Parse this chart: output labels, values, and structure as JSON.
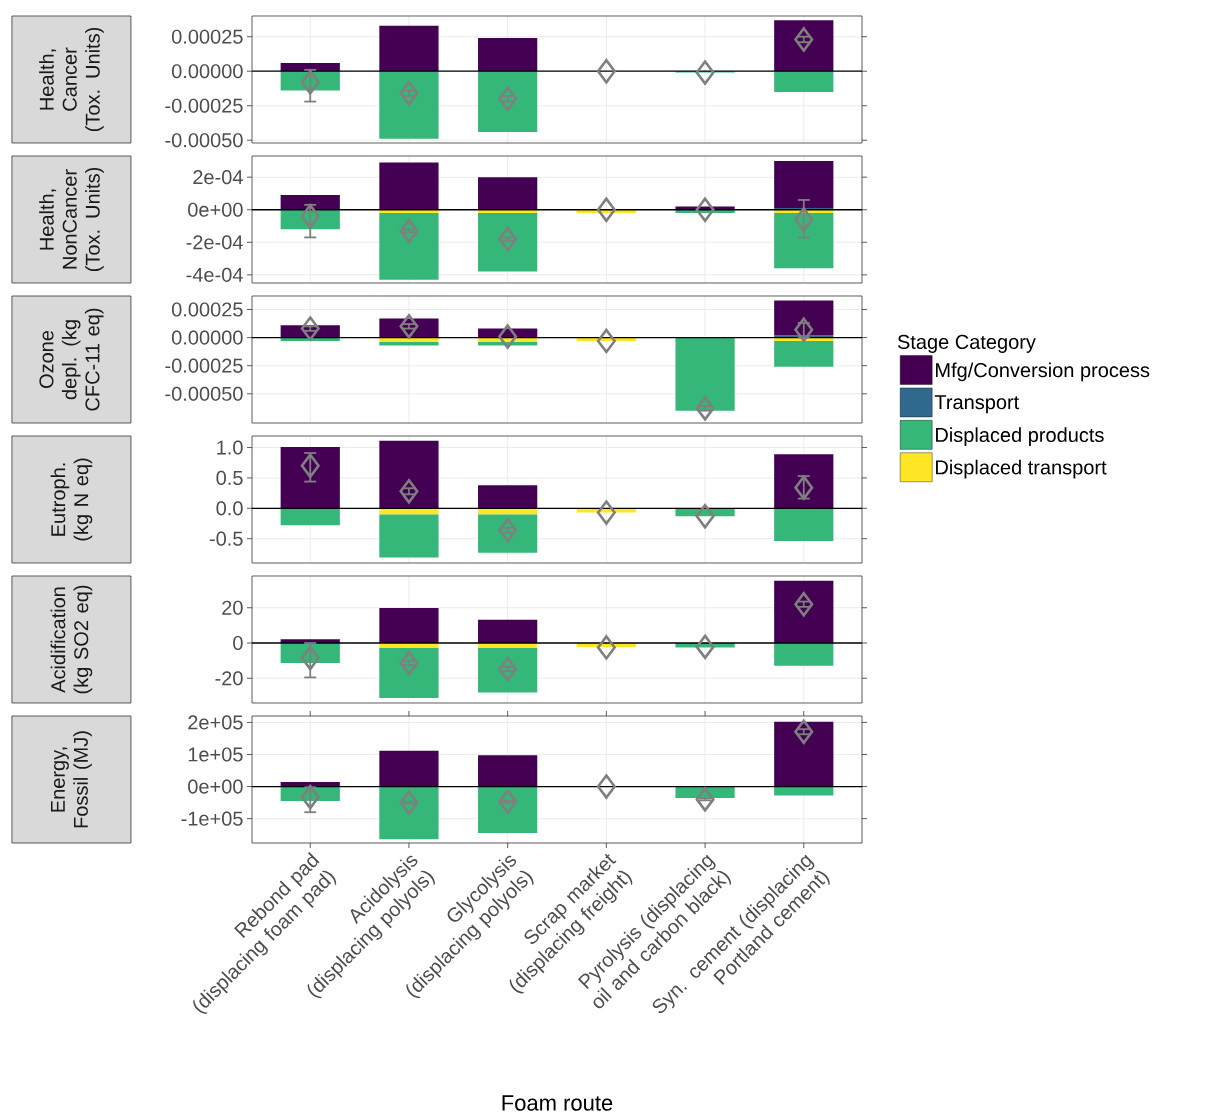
{
  "chart_data": [
    {
      "type": "bar",
      "stacked": true,
      "ylabel": "Health, Cancer (Tox. Units)",
      "ylim": [
        -0.00052,
        0.0004
      ],
      "yticks": [
        {
          "value": -0.0005,
          "label": "-0.00050"
        },
        {
          "value": -0.00025,
          "label": "-0.00025"
        },
        {
          "value": 0,
          "label": "0.00000"
        },
        {
          "value": 0.00025,
          "label": "0.00025"
        }
      ],
      "grid": true,
      "tick_labels": "y",
      "ref_lines": [
        {
          "axis": "y",
          "value": 0,
          "color": "#000000"
        }
      ],
      "series": [
        {
          "color": "#35b779",
          "values": [
            -0.00014,
            -0.00049,
            -0.00044,
            null,
            -1e-05,
            -0.00015
          ]
        },
        {
          "color": "#440154",
          "values": [
            6e-05,
            0.00033,
            0.00024,
            null,
            null,
            0.00037
          ]
        },
        {
          "type": "scatter",
          "color": "#7f7f7f",
          "marker": "diamond",
          "values": [
            -8e-05,
            -0.00016,
            -0.0002,
            0,
            -1e-05,
            0.00023
          ],
          "errors": [
            [
              -0.00022,
              1e-05
            ],
            [
              -0.00018,
              -0.00014
            ],
            [
              -0.00022,
              -0.00018
            ],
            null,
            null,
            [
              0.00021,
              0.00025
            ]
          ]
        }
      ]
    },
    {
      "type": "bar",
      "stacked": true,
      "ylabel": "Health, NonCancer (Tox. Units)",
      "ylim": [
        -0.00045,
        0.00033
      ],
      "yticks": [
        {
          "value": -0.0004,
          "label": "-4e-04"
        },
        {
          "value": -0.0002,
          "label": "-2e-04"
        },
        {
          "value": 0,
          "label": "0e+00"
        },
        {
          "value": 0.0002,
          "label": "2e-04"
        }
      ],
      "grid": true,
      "tick_labels": "y",
      "ref_lines": [
        {
          "axis": "y",
          "value": 0,
          "color": "#000000"
        }
      ],
      "series": [
        {
          "color": "#fde725",
          "values": [
            null,
            -2e-05,
            -2e-05,
            -2e-05,
            null,
            -2e-05
          ]
        },
        {
          "color": "#35b779",
          "values": [
            -0.00012,
            -0.00041,
            -0.00036,
            null,
            -2e-05,
            -0.00034
          ]
        },
        {
          "color": "#31688e",
          "values": [
            null,
            null,
            null,
            null,
            null,
            1e-05
          ]
        },
        {
          "color": "#440154",
          "values": [
            9e-05,
            0.00029,
            0.0002,
            null,
            2e-05,
            0.00029
          ]
        },
        {
          "type": "scatter",
          "color": "#7f7f7f",
          "marker": "diamond",
          "values": [
            -4e-05,
            -0.00013,
            -0.00018,
            0,
            0,
            -6e-05
          ],
          "errors": [
            [
              -0.00017,
              3e-05
            ],
            [
              -0.00014,
              -0.00012
            ],
            [
              -0.00019,
              -0.00017
            ],
            null,
            null,
            [
              -0.00017,
              6e-05
            ]
          ]
        }
      ]
    },
    {
      "type": "bar",
      "stacked": true,
      "ylabel": "Ozone depl. (kg CFC-11 eq)",
      "legend": "right",
      "legend_title": "Stage Category",
      "ylim": [
        -0.00076,
        0.00037
      ],
      "yticks": [
        {
          "value": -0.0005,
          "label": "-0.00050"
        },
        {
          "value": -0.00025,
          "label": "-0.00025"
        },
        {
          "value": 0,
          "label": "0.00000"
        },
        {
          "value": 0.00025,
          "label": "0.00025"
        }
      ],
      "grid": true,
      "tick_labels": "y",
      "ref_lines": [
        {
          "axis": "y",
          "value": 0,
          "color": "#000000"
        }
      ],
      "series": [
        {
          "name": "Displaced transport",
          "color": "#fde725",
          "values": [
            null,
            -4e-05,
            -4e-05,
            -3e-05,
            null,
            -3e-05
          ]
        },
        {
          "name": "Displaced products",
          "color": "#35b779",
          "values": [
            -3e-05,
            -3e-05,
            -3e-05,
            null,
            -0.00065,
            -0.00023
          ]
        },
        {
          "name": "Transport",
          "color": "#31688e",
          "values": [
            null,
            null,
            null,
            null,
            null,
            2e-05
          ]
        },
        {
          "name": "Mfg/Conversion process",
          "color": "#440154",
          "values": [
            0.00011,
            0.00017,
            8e-05,
            null,
            null,
            0.00031
          ]
        },
        {
          "type": "scatter",
          "color": "#7f7f7f",
          "marker": "diamond",
          "values": [
            8e-05,
            0.0001,
            1e-05,
            -3e-05,
            -0.00063,
            7e-05
          ],
          "errors": [
            [
              6e-05,
              0.0001
            ],
            [
              8e-05,
              0.00012
            ],
            null,
            null,
            [
              -0.00065,
              -0.00061
            ],
            [
              0,
              0.00013
            ]
          ]
        }
      ]
    },
    {
      "type": "bar",
      "stacked": true,
      "ylabel": "Eutroph. (kg N eq)",
      "ylim": [
        -0.9,
        1.19
      ],
      "yticks": [
        {
          "value": -0.5,
          "label": "-0.5"
        },
        {
          "value": 0,
          "label": "0.0"
        },
        {
          "value": 0.5,
          "label": "0.5"
        },
        {
          "value": 1,
          "label": "1.0"
        }
      ],
      "grid": true,
      "tick_labels": "y",
      "ref_lines": [
        {
          "axis": "y",
          "value": 0,
          "color": "#000000"
        }
      ],
      "series": [
        {
          "color": "#fde725",
          "values": [
            null,
            -0.1,
            -0.1,
            -0.07,
            null,
            null
          ]
        },
        {
          "color": "#35b779",
          "values": [
            -0.28,
            -0.71,
            -0.63,
            null,
            -0.13,
            -0.54
          ]
        },
        {
          "color": "#440154",
          "values": [
            1.01,
            1.11,
            0.38,
            null,
            null,
            0.89
          ]
        },
        {
          "type": "scatter",
          "color": "#7f7f7f",
          "marker": "diamond",
          "values": [
            0.7,
            0.28,
            -0.36,
            -0.07,
            -0.13,
            0.34
          ],
          "errors": [
            [
              0.44,
              0.91
            ],
            [
              0.23,
              0.33
            ],
            [
              -0.4,
              -0.32
            ],
            null,
            null,
            [
              0.16,
              0.53
            ]
          ]
        }
      ]
    },
    {
      "type": "bar",
      "stacked": true,
      "ylabel": "Acidification (kg SO2 eq)",
      "ylim": [
        -34,
        38
      ],
      "yticks": [
        -20,
        0,
        20
      ],
      "grid": true,
      "tick_labels": "y",
      "ref_lines": [
        {
          "axis": "y",
          "value": 0,
          "color": "#000000"
        }
      ],
      "series": [
        {
          "color": "#fde725",
          "values": [
            null,
            -2.8,
            -2.8,
            -2.2,
            null,
            null
          ]
        },
        {
          "color": "#35b779",
          "values": [
            -11.3,
            -28.4,
            -25.2,
            null,
            -2.5,
            -12.9
          ]
        },
        {
          "color": "#440154",
          "values": [
            2.2,
            19.8,
            13.2,
            null,
            null,
            35.3
          ]
        },
        {
          "type": "scatter",
          "color": "#7f7f7f",
          "marker": "diamond",
          "values": [
            -8.5,
            -11.3,
            -14.8,
            -2.5,
            -2.2,
            22
          ],
          "errors": [
            [
              -19.5,
              0
            ],
            [
              -12.5,
              -10
            ],
            [
              -16,
              -13.5
            ],
            null,
            null,
            [
              20.5,
              23.5
            ]
          ]
        }
      ]
    },
    {
      "type": "bar",
      "stacked": true,
      "ylabel": "Energy, Fossil (MJ)",
      "xlabel": "Foam route",
      "categories": [
        "Rebond pad (displacing foam pad)",
        "Acidolysis (displacing polyols)",
        "Glycolysis (displacing polyols)",
        "Scrap market (displacing freight)",
        "Pyrolysis (displacing oil and carbon black)",
        "Syn. cement (displacing Portland cement)"
      ],
      "ylim": [
        -176000,
        220000
      ],
      "yticks": [
        {
          "value": -100000,
          "label": "-1e+05"
        },
        {
          "value": 0,
          "label": "0e+00"
        },
        {
          "value": 100000,
          "label": "1e+05"
        },
        {
          "value": 200000,
          "label": "2e+05"
        }
      ],
      "grid": true,
      "ref_lines": [
        {
          "axis": "y",
          "value": 0,
          "color": "#000000"
        }
      ],
      "series": [
        {
          "color": "#35b779",
          "values": [
            -45000,
            -164000,
            -145000,
            null,
            -36000,
            -28000
          ]
        },
        {
          "color": "#440154",
          "values": [
            14000,
            112000,
            98000,
            null,
            null,
            202000
          ]
        },
        {
          "type": "scatter",
          "color": "#7f7f7f",
          "marker": "diamond",
          "values": [
            -33000,
            -50000,
            -47000,
            0,
            -40000,
            171000
          ],
          "errors": [
            [
              -80000,
              -2000
            ],
            [
              -53000,
              -47000
            ],
            [
              -50000,
              -44000
            ],
            null,
            [
              -43000,
              -37000
            ],
            [
              163000,
              179000
            ]
          ]
        }
      ]
    }
  ]
}
